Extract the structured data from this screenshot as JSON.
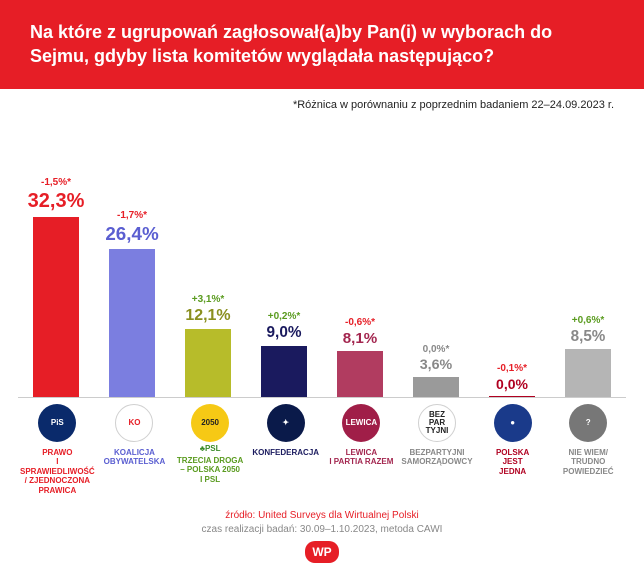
{
  "header": {
    "title": "Na które z ugrupowań zagłosował(a)by Pan(i) w wyborach do Sejmu, gdyby lista komitetów wyglądała następująco?"
  },
  "subtitle": "*Różnica w porównaniu z poprzednim badaniem 22–24.09.2023 r.",
  "chart": {
    "type": "bar",
    "max": 32.3,
    "bar_area_height": 180,
    "series": [
      {
        "diff": "-1,5%*",
        "diff_color": "#e61e26",
        "value": "32,3%",
        "value_num": 32.3,
        "value_color": "#e61e26",
        "bar_color": "#e61e26",
        "logo_bg": "#0a2a6b",
        "logo_text": "PiS",
        "party": "PRAWO\nI SPRAWIEDLIWOŚĆ\n/ ZJEDNOCZONA\nPRAWICA",
        "party_color": "#e61e26"
      },
      {
        "diff": "-1,7%*",
        "diff_color": "#e61e26",
        "value": "26,4%",
        "value_num": 26.4,
        "value_color": "#5a5ed1",
        "bar_color": "#7b7ee0",
        "logo_bg": "#ffffff",
        "logo_text": "KO",
        "logo_text_color": "#e61e26",
        "logo_border": "#d0d0d0",
        "party": "KOALICJA\nOBYWATELSKA",
        "party_color": "#5a5ed1"
      },
      {
        "diff": "+3,1%*",
        "diff_color": "#5a9b1f",
        "value": "12,1%",
        "value_num": 12.1,
        "value_color": "#8a8f1f",
        "bar_color": "#b7bc2a",
        "logo_bg": "#f6c915",
        "logo_text": "2050",
        "logo_text_color": "#222",
        "party": "TRZECIA DROGA\n– POLSKA 2050\nI PSL",
        "party_color": "#5a9b1f",
        "extra": "♣PSL"
      },
      {
        "diff": "+0,2%*",
        "diff_color": "#5a9b1f",
        "value": "9,0%",
        "value_num": 9.0,
        "value_color": "#1a1a5e",
        "bar_color": "#1a1a5e",
        "logo_bg": "#0a1a4a",
        "logo_text": "✦",
        "party": "KONFEDERACJA",
        "party_color": "#1a1a5e"
      },
      {
        "diff": "-0,6%*",
        "diff_color": "#e61e26",
        "value": "8,1%",
        "value_num": 8.1,
        "value_color": "#a3264f",
        "bar_color": "#b13c60",
        "logo_bg": "#a01e48",
        "logo_text": "LEWICA",
        "party": "LEWICA\nI PARTIA RAZEM",
        "party_color": "#a3264f"
      },
      {
        "diff": "0,0%*",
        "diff_color": "#888888",
        "value": "3,6%",
        "value_num": 3.6,
        "value_color": "#888888",
        "bar_color": "#9a9a9a",
        "logo_bg": "#ffffff",
        "logo_text": "BEZ\nPAR\nTYJNI",
        "logo_text_color": "#222",
        "logo_border": "#d0d0d0",
        "party": "BEZPARTYJNI\nSAMORZĄDOWCY",
        "party_color": "#888888"
      },
      {
        "diff": "-0,1%*",
        "diff_color": "#e61e26",
        "value": "0,0%",
        "value_num": 0.0,
        "value_color": "#b00020",
        "bar_color": "#b00020",
        "logo_bg": "#1a3a8a",
        "logo_text": "●",
        "party": "POLSKA\nJEST\nJEDNA",
        "party_color": "#b00020"
      },
      {
        "diff": "+0,6%*",
        "diff_color": "#5a9b1f",
        "value": "8,5%",
        "value_num": 8.5,
        "value_color": "#888888",
        "bar_color": "#b5b5b5",
        "logo_bg": "#777777",
        "logo_text": "?",
        "party": "NIE WIEM/\nTRUDNO\nPOWIEDZIEĆ",
        "party_color": "#888888"
      }
    ]
  },
  "footer": {
    "source": "źródło: United Surveys dla Wirtualnej Polski",
    "method": "czas realizacji badań: 30.09–1.10.2023, metoda CAWI",
    "brand": "WP"
  }
}
